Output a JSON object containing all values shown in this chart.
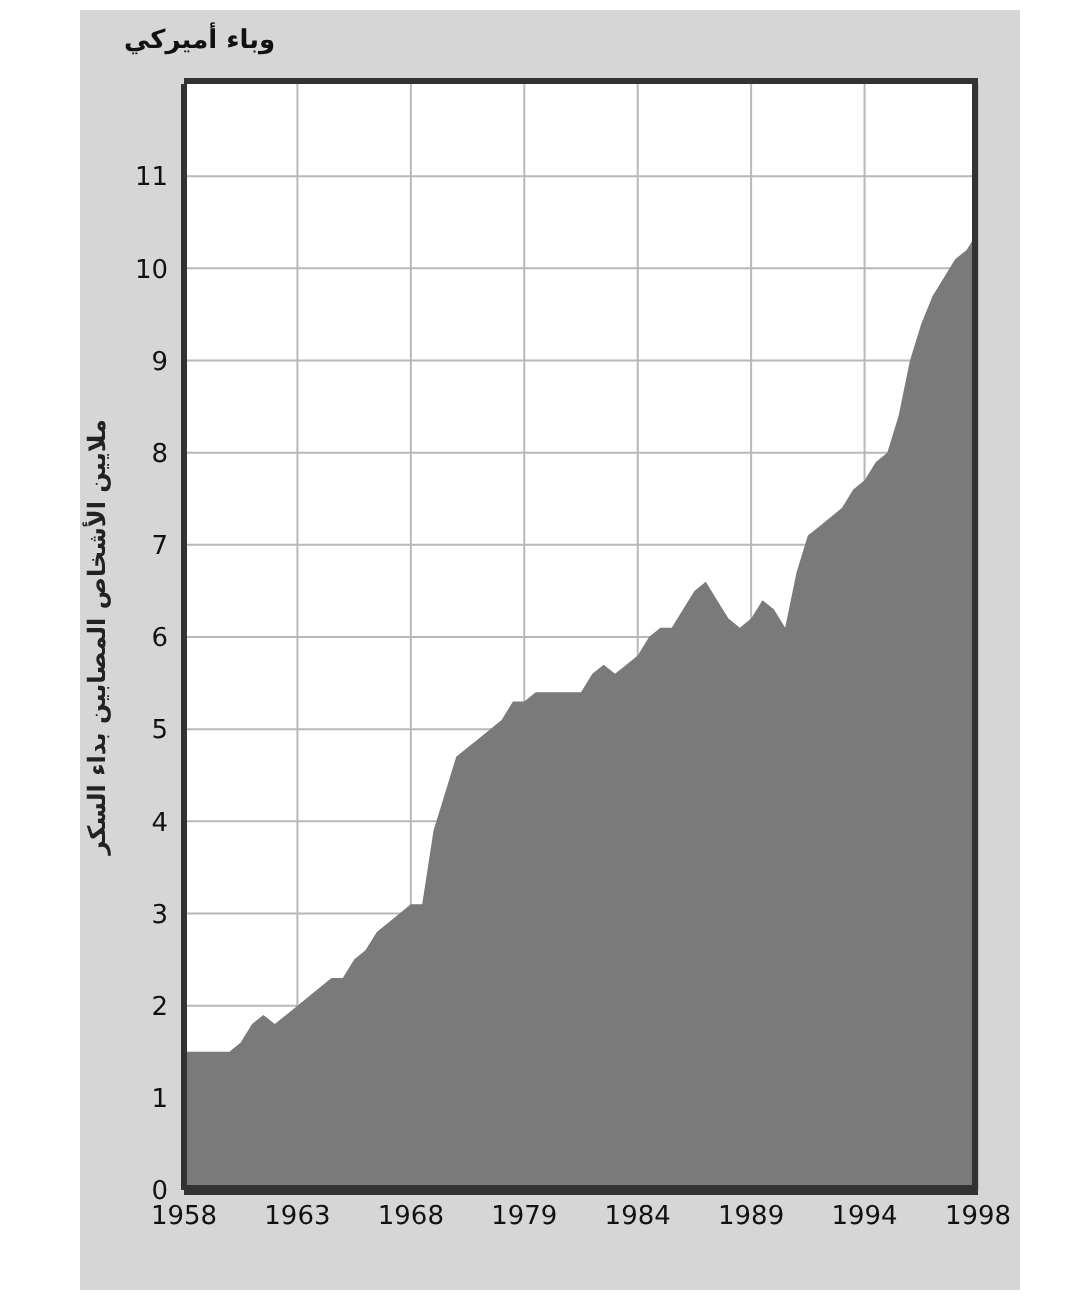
{
  "chart_data": {
    "type": "area",
    "title": "وباء أميركي",
    "ylabel": "ملايين الأشخاص المصابين بداء السكر",
    "categories": [
      "1958",
      null,
      null,
      null,
      null,
      null,
      null,
      null,
      null,
      null,
      "1963",
      null,
      null,
      null,
      null,
      null,
      null,
      null,
      null,
      null,
      "1968",
      null,
      null,
      null,
      null,
      null,
      null,
      null,
      null,
      null,
      "1979",
      null,
      null,
      null,
      null,
      null,
      null,
      null,
      null,
      null,
      "1984",
      null,
      null,
      null,
      null,
      null,
      null,
      null,
      null,
      null,
      "1989",
      null,
      null,
      null,
      null,
      null,
      null,
      null,
      null,
      null,
      "1994",
      null,
      null,
      null,
      null,
      null,
      null,
      null,
      null,
      null,
      "1998"
    ],
    "series": [
      {
        "color": "#7a7a7a",
        "values": [
          1.5,
          1.5,
          1.5,
          1.5,
          1.5,
          1.6,
          1.8,
          1.9,
          1.8,
          1.9,
          2.0,
          2.1,
          2.2,
          2.3,
          2.3,
          2.5,
          2.6,
          2.8,
          2.9,
          3.0,
          3.1,
          3.1,
          3.9,
          4.3,
          4.7,
          4.8,
          4.9,
          5.0,
          5.1,
          5.3,
          5.3,
          5.4,
          5.4,
          5.4,
          5.4,
          5.4,
          5.6,
          5.7,
          5.6,
          5.7,
          5.8,
          6.0,
          6.1,
          6.1,
          6.3,
          6.5,
          6.6,
          6.4,
          6.2,
          6.1,
          6.2,
          6.4,
          6.3,
          6.1,
          6.7,
          7.1,
          7.2,
          7.3,
          7.4,
          7.6,
          7.7,
          7.9,
          8.0,
          8.4,
          9.0,
          9.4,
          9.7,
          9.9,
          10.1,
          10.2,
          10.4
        ]
      }
    ],
    "ylim": [
      0,
      12
    ],
    "yticks": [
      0,
      1,
      2,
      3,
      4,
      5,
      6,
      7,
      8,
      9,
      10,
      11
    ],
    "grid": true,
    "legend": false
  }
}
